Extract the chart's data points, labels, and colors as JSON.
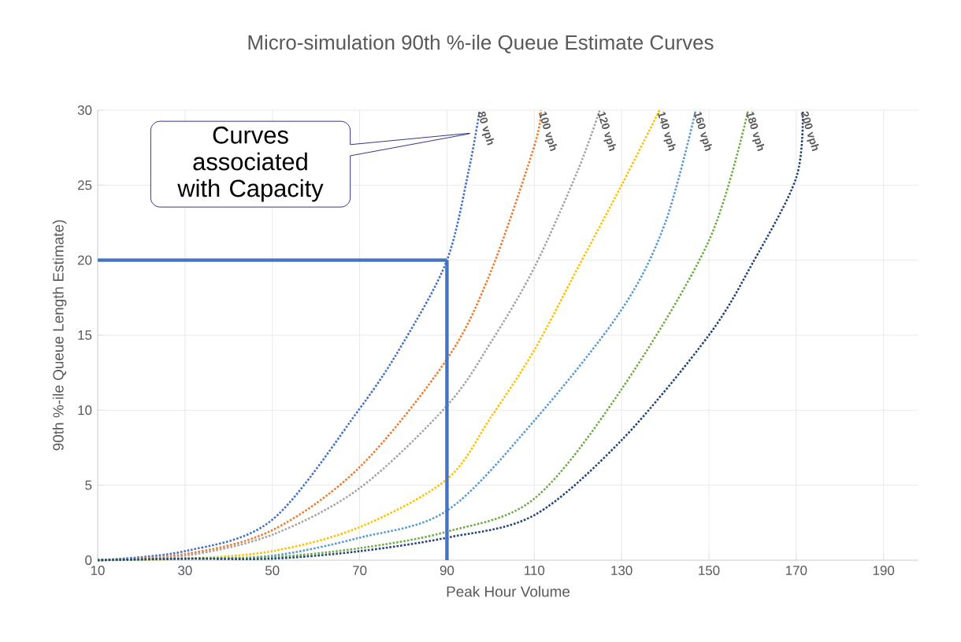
{
  "chart_data": {
    "type": "line",
    "title": "Micro-simulation 90th %-ile Queue Estimate Curves",
    "xlabel": "Peak Hour Volume",
    "ylabel": "90th %-ile Queue Length Estimate)",
    "xlim": [
      10,
      198
    ],
    "ylim": [
      0,
      30
    ],
    "xticks": [
      10,
      30,
      50,
      70,
      90,
      110,
      130,
      150,
      170,
      190
    ],
    "yticks": [
      0,
      5,
      10,
      15,
      20,
      25,
      30
    ],
    "grid": true,
    "line_style": "dotted",
    "marker": "none",
    "series": [
      {
        "name": "80 vph",
        "color": "#4472c4",
        "x": [
          10,
          30,
          50,
          70,
          80,
          90,
          95,
          97.5
        ],
        "values": [
          0,
          0.6,
          2.7,
          10.1,
          14.5,
          20,
          26,
          30
        ]
      },
      {
        "name": "100 vph",
        "color": "#ed7d31",
        "x": [
          10,
          30,
          50,
          70,
          90,
          100,
          110,
          111.5
        ],
        "values": [
          0,
          0.4,
          2,
          6.2,
          13.4,
          19.2,
          27.6,
          30
        ]
      },
      {
        "name": "120 vph",
        "color": "#a5a5a5",
        "x": [
          10,
          30,
          50,
          70,
          90,
          100,
          110,
          120,
          125
        ],
        "values": [
          0,
          0.3,
          1.7,
          4.8,
          10.3,
          14.5,
          19.5,
          26,
          30
        ]
      },
      {
        "name": "140 vph",
        "color": "#ffc000",
        "x": [
          10,
          30,
          50,
          70,
          90,
          100,
          110,
          120,
          130,
          138.7
        ],
        "values": [
          0,
          0.1,
          0.6,
          2.2,
          5.4,
          9.5,
          14,
          19.5,
          25,
          30
        ]
      },
      {
        "name": "160 vph",
        "color": "#5b9bd5",
        "x": [
          10,
          30,
          50,
          70,
          90,
          110,
          130,
          140,
          147
        ],
        "values": [
          0,
          0.1,
          0.3,
          1.5,
          3.3,
          9.3,
          16.7,
          22.5,
          30
        ]
      },
      {
        "name": "180 vph",
        "color": "#70ad47",
        "x": [
          10,
          30,
          50,
          70,
          90,
          110,
          130,
          150,
          159
        ],
        "values": [
          0,
          0.1,
          0.2,
          0.8,
          1.9,
          4.1,
          11.4,
          21.3,
          30
        ]
      },
      {
        "name": "200 vph",
        "color": "#264478",
        "x": [
          10,
          30,
          50,
          70,
          90,
          110,
          130,
          150,
          160,
          170,
          171.5
        ],
        "values": [
          0,
          0.1,
          0.1,
          0.6,
          1.5,
          3,
          8,
          15,
          19.8,
          25.5,
          30
        ]
      }
    ],
    "ref_lines": [
      {
        "axis": "y",
        "value": 20,
        "color": "#4472c4"
      },
      {
        "axis": "x",
        "value": 90,
        "color": "#4472c4"
      }
    ],
    "annotations": [
      "Curves associated with Capacity"
    ]
  }
}
